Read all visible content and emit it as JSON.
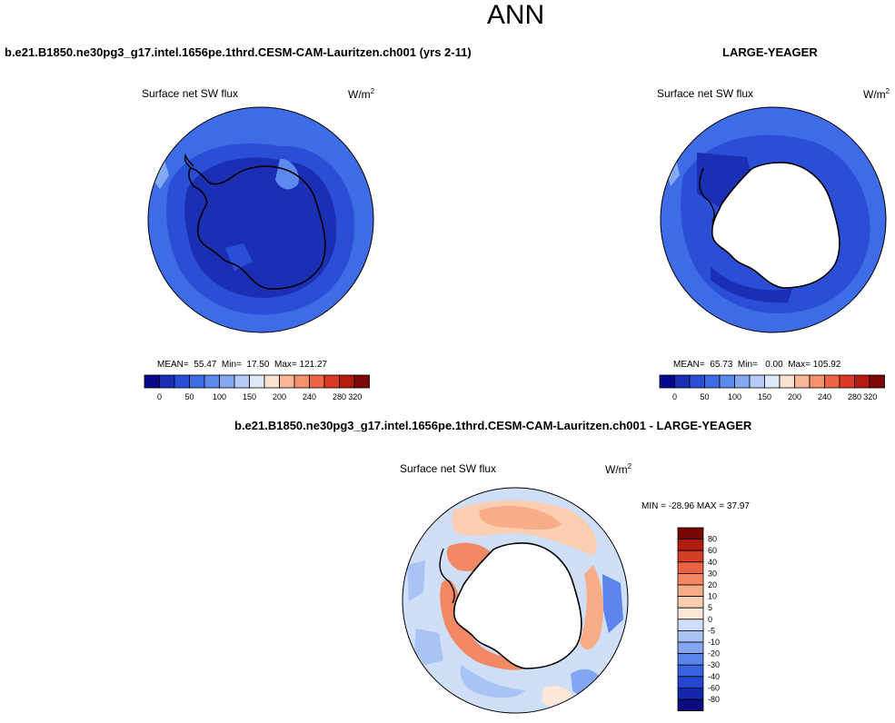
{
  "page_title": "ANN",
  "colors": {
    "abs_scale": [
      "#08088c",
      "#1a2fb3",
      "#2a4fd6",
      "#3e6be6",
      "#5d88ee",
      "#86a9f3",
      "#b3cbf6",
      "#dde9f8",
      "#fce0d0",
      "#f8b897",
      "#f4906b",
      "#ee6444",
      "#dc3a22",
      "#b41a10",
      "#7d0606"
    ],
    "diff_scale": [
      "#0a0b7c",
      "#1525b0",
      "#2546d0",
      "#3964e2",
      "#5b84ec",
      "#82a6f2",
      "#a9c3f5",
      "#cfdff7",
      "#fde7d9",
      "#fbcdb1",
      "#f8ac87",
      "#f28864",
      "#ec6245",
      "#d73d24",
      "#b01c0e",
      "#7a0707"
    ],
    "land": "#ffffff",
    "coast": "#000000"
  },
  "panels": {
    "test": {
      "case_title": "b.e21.B1850.ne30pg3_g17.intel.1656pe.1thrd.CESM-CAM-Lauritzen.ch001 (yrs 2-11)",
      "variable": "Surface net SW flux",
      "units_base": "W/m",
      "units_exp": "2",
      "mean_label": "MEAN=",
      "mean_value": "55.47",
      "min_label": "Min=",
      "min_value": "17.50",
      "max_label": "Max=",
      "max_value": "121.27"
    },
    "obs": {
      "case_title": "LARGE-YEAGER",
      "variable": "Surface net SW flux",
      "units_base": "W/m",
      "units_exp": "2",
      "mean_label": "MEAN=",
      "mean_value": "65.73",
      "min_label": "Min=",
      "min_value": "0.00",
      "max_label": "Max=",
      "max_value": "105.92"
    },
    "diff": {
      "case_title": "b.e21.B1850.ne30pg3_g17.intel.1656pe.1thrd.CESM-CAM-Lauritzen.ch001 - LARGE-YEAGER",
      "variable": "Surface net SW flux",
      "units_base": "W/m",
      "units_exp": "2",
      "minmax_text": "MIN = -28.96 MAX =  37.97"
    }
  },
  "colorbars": {
    "abs_ticks": [
      "0",
      "50",
      "100",
      "150",
      "200",
      "240",
      "280",
      "320"
    ],
    "diff_ticks": [
      "80",
      "60",
      "40",
      "30",
      "20",
      "10",
      "5",
      "0",
      "-5",
      "-10",
      "-20",
      "-30",
      "-40",
      "-60",
      "-80"
    ]
  }
}
